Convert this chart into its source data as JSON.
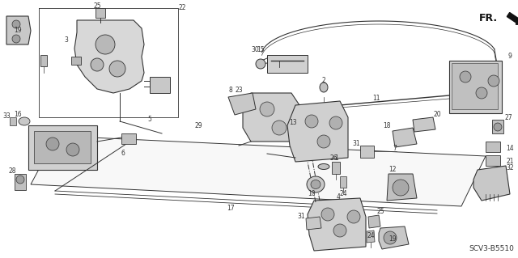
{
  "background_color": "#ffffff",
  "diagram_code": "SCV3-B5510",
  "fig_width": 6.4,
  "fig_height": 3.19,
  "dpi": 100,
  "line_color": "#333333",
  "label_fontsize": 5.5,
  "code_fontsize": 6.5
}
